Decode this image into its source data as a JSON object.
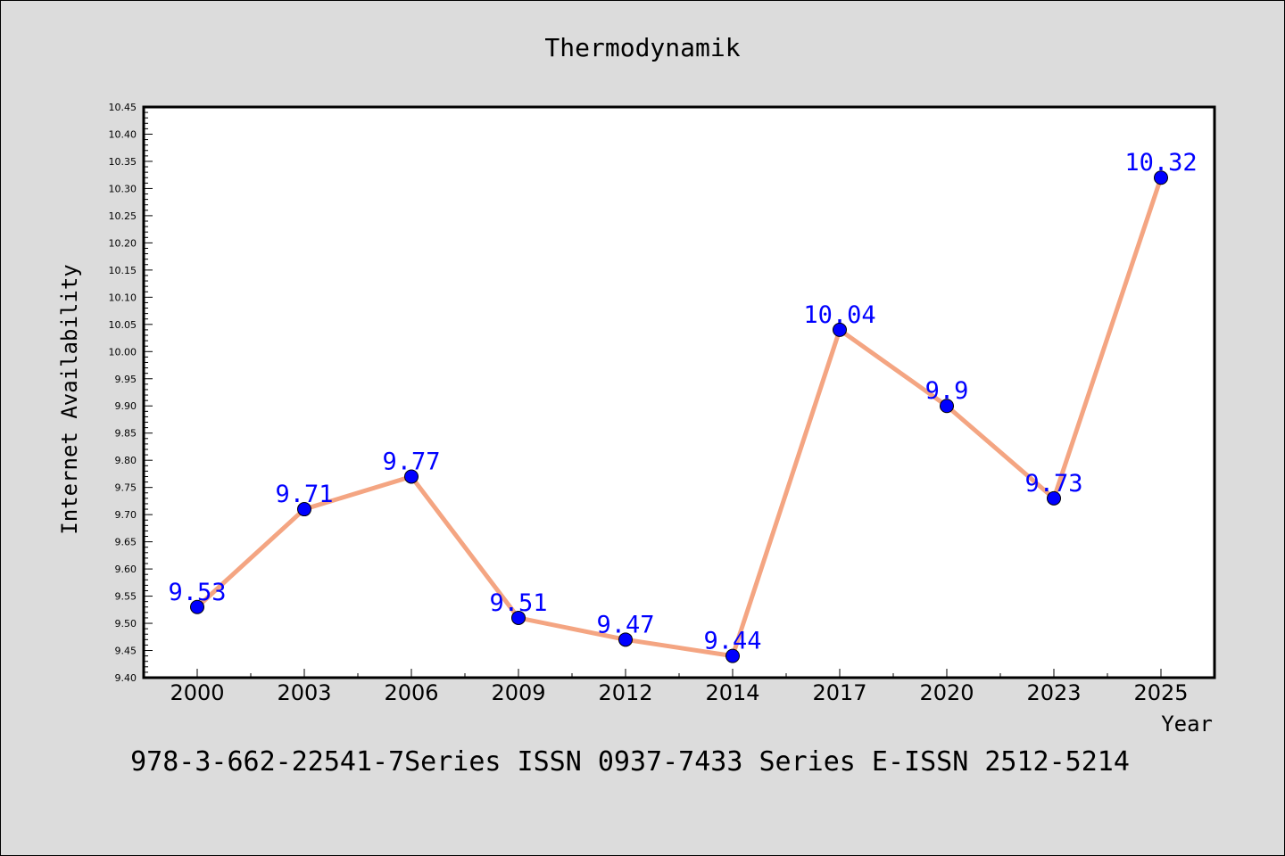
{
  "chart_data": {
    "type": "line",
    "title": "Thermodynamik",
    "xlabel": "Year",
    "ylabel": "Internet Availability",
    "categories": [
      "2000",
      "2003",
      "2006",
      "2009",
      "2012",
      "2014",
      "2017",
      "2020",
      "2023",
      "2025"
    ],
    "series": [
      {
        "values": [
          9.53,
          9.71,
          9.77,
          9.51,
          9.47,
          9.44,
          10.04,
          9.9,
          9.73,
          10.32
        ],
        "labels": [
          "9.53",
          "9.71",
          "9.77",
          "9.51",
          "9.47",
          "9.44",
          "10.04",
          "9.9",
          "9.73",
          "10.32"
        ],
        "line_color": "#f4a582",
        "marker_color": "#0000ff"
      }
    ],
    "ylim": [
      9.4,
      10.45
    ],
    "yticks": [
      "9.40",
      "9.45",
      "9.50",
      "9.55",
      "9.60",
      "9.65",
      "9.70",
      "9.75",
      "9.80",
      "9.85",
      "9.90",
      "9.95",
      "10.00",
      "10.05",
      "10.10",
      "10.15",
      "10.20",
      "10.25",
      "10.30",
      "10.35",
      "10.40",
      "10.45"
    ],
    "grid": false,
    "label_color": "#0000ff"
  },
  "footer_text": "978-3-662-22541-7Series ISSN 0937-7433 Series E-ISSN 2512-5214",
  "colors": {
    "background": "#dcdcdc",
    "plot_background": "#ffffff",
    "axis": "#000000"
  }
}
